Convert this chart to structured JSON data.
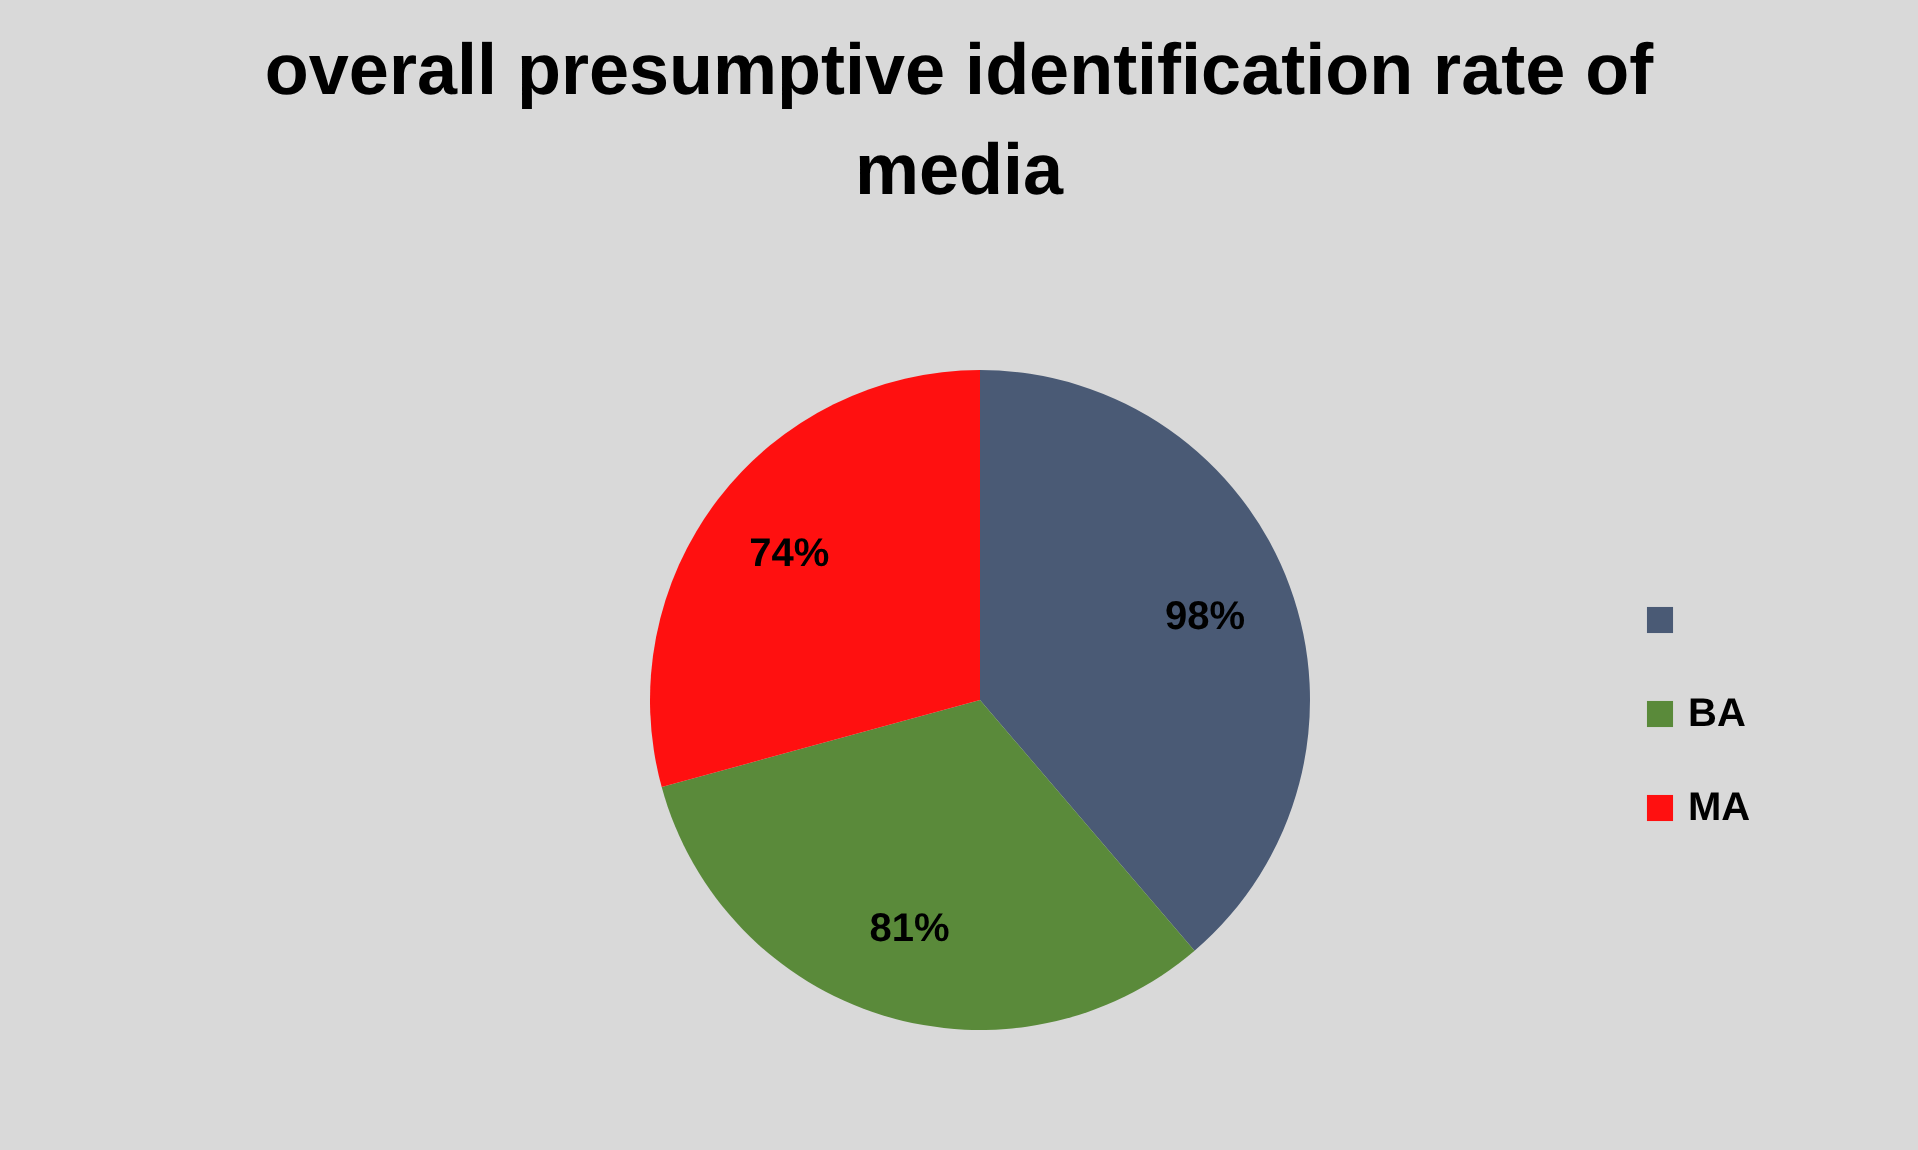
{
  "chart_data": {
    "type": "pie",
    "title": "overall presumptive identification rate of media",
    "categories": [
      null,
      "BA",
      "MA"
    ],
    "values": [
      98,
      81,
      74
    ],
    "value_labels": [
      "98%",
      "81%",
      "74%"
    ],
    "colors": [
      "#4a5a75",
      "#5a8a3a",
      "#ff1010"
    ],
    "legend": "right"
  }
}
